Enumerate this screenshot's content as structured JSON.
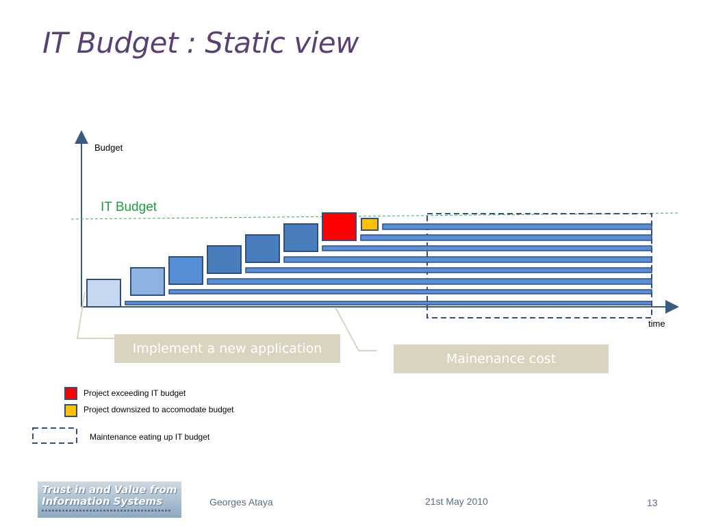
{
  "slide": {
    "title": "IT Budget : Static view",
    "colors": {
      "title": "#5b4173",
      "axis": "#3a5b80",
      "budget_line": "#2eb050",
      "bar_fill": "#5b8ed6",
      "bar_stroke": "#2f4f7a",
      "callout_bg": "#d9d4bf"
    }
  },
  "diagram": {
    "y_axis_label": "Budget",
    "x_axis_label": "time",
    "budget_line_label": "IT Budget",
    "callouts": {
      "implement": "Implement a new application",
      "maintenance": "Mainenance cost"
    }
  },
  "legend": {
    "items": [
      {
        "label": "Project exceeding IT budget",
        "color": "#ff0000"
      },
      {
        "label": "Project downsized to accomodate budget",
        "color": "#ffc000"
      },
      {
        "label": "Maintenance eating up IT budget",
        "color": "dashed-outline"
      }
    ]
  },
  "footer": {
    "logo_line1": "Trust in and Value from",
    "logo_line2": "Information Systems",
    "author": "Georges Ataya",
    "date": "21st May 2010",
    "page_number": "13"
  }
}
